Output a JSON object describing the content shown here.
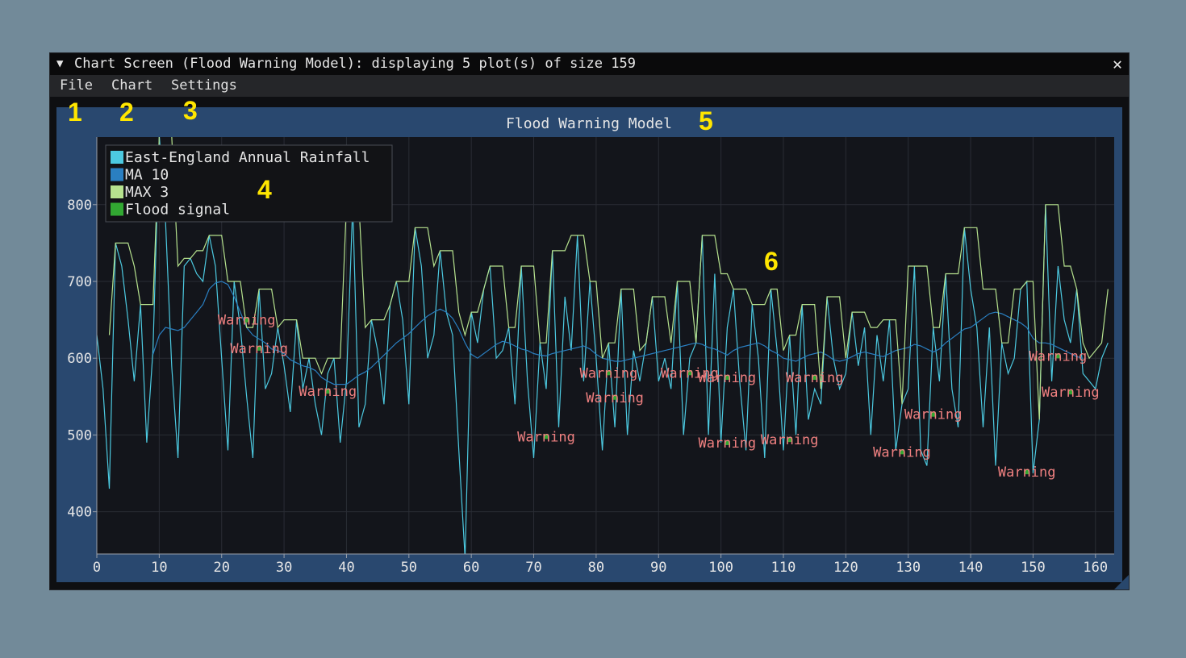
{
  "window": {
    "title": "Chart Screen (Flood Warning Model): displaying 5 plot(s) of size 159",
    "collapse_glyph": "▼",
    "close_glyph": "✕"
  },
  "menu": {
    "items": [
      "File",
      "Chart",
      "Settings"
    ]
  },
  "annotations": [
    "1",
    "2",
    "3",
    "4",
    "5",
    "6"
  ],
  "colors": {
    "background": "#728a99",
    "plot_bg": "#13151b",
    "panel_bg": "#29486f",
    "rainfall": "#4cc9e0",
    "ma10": "#2a7fc1",
    "max3": "#b6e28e",
    "flood_signal": "#32a832",
    "warning_text": "#ef8080",
    "annotation": "#ffe600"
  },
  "chart_data": {
    "type": "line",
    "title": "Flood Warning Model",
    "xlim": [
      0,
      163
    ],
    "ylim": [
      345,
      888
    ],
    "xticks": [
      0,
      10,
      20,
      30,
      40,
      50,
      60,
      70,
      80,
      90,
      100,
      110,
      120,
      130,
      140,
      150,
      160
    ],
    "yticks": [
      400,
      500,
      600,
      700,
      800
    ],
    "legend_position": "top-left",
    "grid": true,
    "series": [
      {
        "name": "East-England Annual Rainfall",
        "values": [
          630,
          560,
          430,
          750,
          720,
          650,
          570,
          670,
          490,
          610,
          890,
          780,
          590,
          470,
          720,
          730,
          710,
          700,
          760,
          720,
          600,
          480,
          700,
          640,
          550,
          470,
          690,
          560,
          580,
          640,
          590,
          530,
          650,
          560,
          600,
          540,
          500,
          580,
          600,
          490,
          570,
          800,
          510,
          540,
          650,
          610,
          540,
          670,
          700,
          650,
          540,
          770,
          720,
          600,
          630,
          740,
          660,
          630,
          480,
          340,
          660,
          620,
          690,
          720,
          600,
          610,
          640,
          540,
          720,
          570,
          470,
          620,
          560,
          740,
          510,
          680,
          610,
          760,
          570,
          700,
          600,
          480,
          620,
          510,
          690,
          500,
          610,
          570,
          620,
          680,
          570,
          600,
          560,
          700,
          500,
          600,
          620,
          760,
          500,
          710,
          490,
          640,
          690,
          570,
          480,
          670,
          600,
          470,
          690,
          610,
          480,
          630,
          500,
          670,
          520,
          560,
          540,
          680,
          600,
          560,
          580,
          660,
          590,
          640,
          500,
          630,
          570,
          650,
          480,
          540,
          560,
          720,
          480,
          460,
          640,
          570,
          710,
          560,
          510,
          770,
          690,
          640,
          510,
          640,
          460,
          620,
          580,
          600,
          690,
          700,
          450,
          520,
          800,
          570,
          720,
          650,
          620,
          690,
          580,
          570,
          560,
          600,
          620
        ]
      },
      {
        "name": "MA 10",
        "values": [
          null,
          null,
          null,
          null,
          null,
          null,
          null,
          null,
          null,
          605,
          630,
          640,
          638,
          636,
          640,
          650,
          660,
          670,
          690,
          698,
          700,
          696,
          680,
          660,
          640,
          630,
          625,
          620,
          612,
          610,
          606,
          598,
          594,
          590,
          588,
          584,
          575,
          570,
          566,
          566,
          566,
          572,
          578,
          582,
          588,
          596,
          604,
          612,
          620,
          626,
          632,
          640,
          648,
          655,
          660,
          664,
          660,
          652,
          638,
          620,
          605,
          600,
          606,
          612,
          618,
          622,
          620,
          616,
          612,
          610,
          606,
          604,
          603,
          606,
          608,
          610,
          612,
          614,
          616,
          612,
          605,
          600,
          598,
          596,
          596,
          598,
          600,
          602,
          604,
          606,
          608,
          610,
          612,
          614,
          616,
          618,
          620,
          618,
          614,
          612,
          608,
          604,
          610,
          614,
          616,
          618,
          620,
          616,
          610,
          606,
          600,
          598,
          596,
          600,
          604,
          606,
          608,
          604,
          598,
          596,
          598,
          602,
          606,
          608,
          606,
          604,
          602,
          606,
          610,
          612,
          614,
          618,
          616,
          612,
          608,
          612,
          620,
          626,
          632,
          638,
          640,
          646,
          652,
          658,
          660,
          658,
          654,
          650,
          646,
          640,
          626,
          620,
          620,
          618,
          614,
          610,
          606,
          602,
          600
        ]
      },
      {
        "name": "MAX 3",
        "values": [
          null,
          null,
          630,
          750,
          750,
          750,
          720,
          670,
          670,
          670,
          890,
          890,
          890,
          720,
          730,
          730,
          740,
          740,
          760,
          760,
          760,
          700,
          700,
          700,
          640,
          640,
          690,
          690,
          690,
          640,
          650,
          650,
          650,
          600,
          600,
          600,
          580,
          600,
          600,
          600,
          800,
          800,
          800,
          640,
          650,
          650,
          650,
          670,
          700,
          700,
          700,
          770,
          770,
          770,
          720,
          740,
          740,
          740,
          660,
          630,
          660,
          660,
          690,
          720,
          720,
          720,
          640,
          640,
          720,
          720,
          720,
          620,
          620,
          740,
          740,
          740,
          760,
          760,
          760,
          700,
          700,
          600,
          620,
          620,
          690,
          690,
          690,
          610,
          620,
          680,
          680,
          680,
          620,
          700,
          700,
          700,
          620,
          760,
          760,
          760,
          710,
          710,
          690,
          690,
          690,
          670,
          670,
          670,
          690,
          690,
          610,
          630,
          630,
          670,
          670,
          670,
          560,
          680,
          680,
          680,
          600,
          660,
          660,
          660,
          640,
          640,
          650,
          650,
          650,
          540,
          720,
          720,
          720,
          720,
          640,
          640,
          710,
          710,
          710,
          770,
          770,
          770,
          690,
          690,
          690,
          620,
          620,
          690,
          690,
          700,
          700,
          520,
          800,
          800,
          800,
          720,
          720,
          690,
          620,
          600,
          610,
          620,
          690
        ]
      },
      {
        "name": "Flood signal",
        "values": []
      }
    ],
    "annotations": [
      {
        "text": "Warning",
        "x": 24,
        "y": 650
      },
      {
        "text": "Warning",
        "x": 26,
        "y": 613
      },
      {
        "text": "Warning",
        "x": 37,
        "y": 557
      },
      {
        "text": "Warning",
        "x": 72,
        "y": 498
      },
      {
        "text": "Warning",
        "x": 82,
        "y": 581
      },
      {
        "text": "Warning",
        "x": 83,
        "y": 549
      },
      {
        "text": "Warning",
        "x": 95,
        "y": 581
      },
      {
        "text": "Warning",
        "x": 101,
        "y": 575
      },
      {
        "text": "Warning",
        "x": 101,
        "y": 490
      },
      {
        "text": "Warning",
        "x": 111,
        "y": 494
      },
      {
        "text": "Warning",
        "x": 115,
        "y": 575
      },
      {
        "text": "Warning",
        "x": 129,
        "y": 478
      },
      {
        "text": "Warning",
        "x": 134,
        "y": 527
      },
      {
        "text": "Warning",
        "x": 149,
        "y": 452
      },
      {
        "text": "Warning",
        "x": 154,
        "y": 603
      },
      {
        "text": "Warning",
        "x": 156,
        "y": 556
      }
    ]
  }
}
